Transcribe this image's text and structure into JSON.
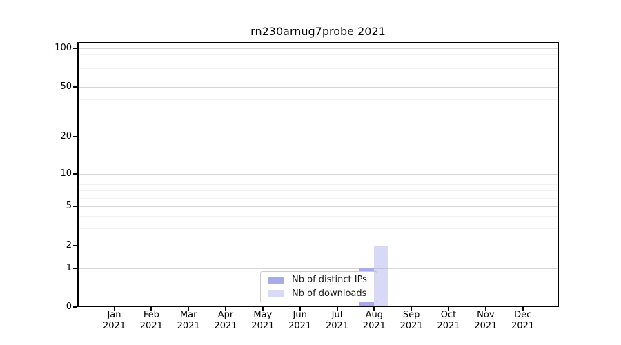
{
  "page": {
    "background": "#ffffff"
  },
  "chart_data": {
    "type": "bar",
    "title": "rn230arnug7probe 2021",
    "categories": [
      "Jan 2021",
      "Feb 2021",
      "Mar 2021",
      "Apr 2021",
      "May 2021",
      "Jun 2021",
      "Jul 2021",
      "Aug 2021",
      "Sep 2021",
      "Oct 2021",
      "Nov 2021",
      "Dec 2021"
    ],
    "series": [
      {
        "name": "Nb of distinct IPs",
        "color": "#a9a9ee",
        "fill": "#a9a9ee",
        "values": [
          0,
          0,
          0,
          0,
          0,
          0,
          0,
          1,
          0,
          0,
          0,
          0
        ]
      },
      {
        "name": "Nb of downloads",
        "color": "#d9d9f8",
        "fill": "rgba(169,169,238,0.45)",
        "values": [
          0,
          0,
          0,
          0,
          0,
          0,
          0,
          2,
          0,
          0,
          0,
          0
        ]
      }
    ],
    "xlabel": "",
    "ylabel": "",
    "yscale": "symlog",
    "yticks": [
      0,
      1,
      2,
      5,
      10,
      20,
      50,
      100
    ],
    "yminor_gridlines": [
      3,
      4,
      6,
      7,
      8,
      9,
      30,
      40,
      60,
      70,
      80,
      90
    ],
    "ylim": [
      0,
      100
    ],
    "grid": "horizontal",
    "legend_position": "inside-bottom-center",
    "axis_color": "#000000",
    "major_grid_color": "#d6d6d6",
    "minor_grid_color": "#f1f1f1"
  }
}
